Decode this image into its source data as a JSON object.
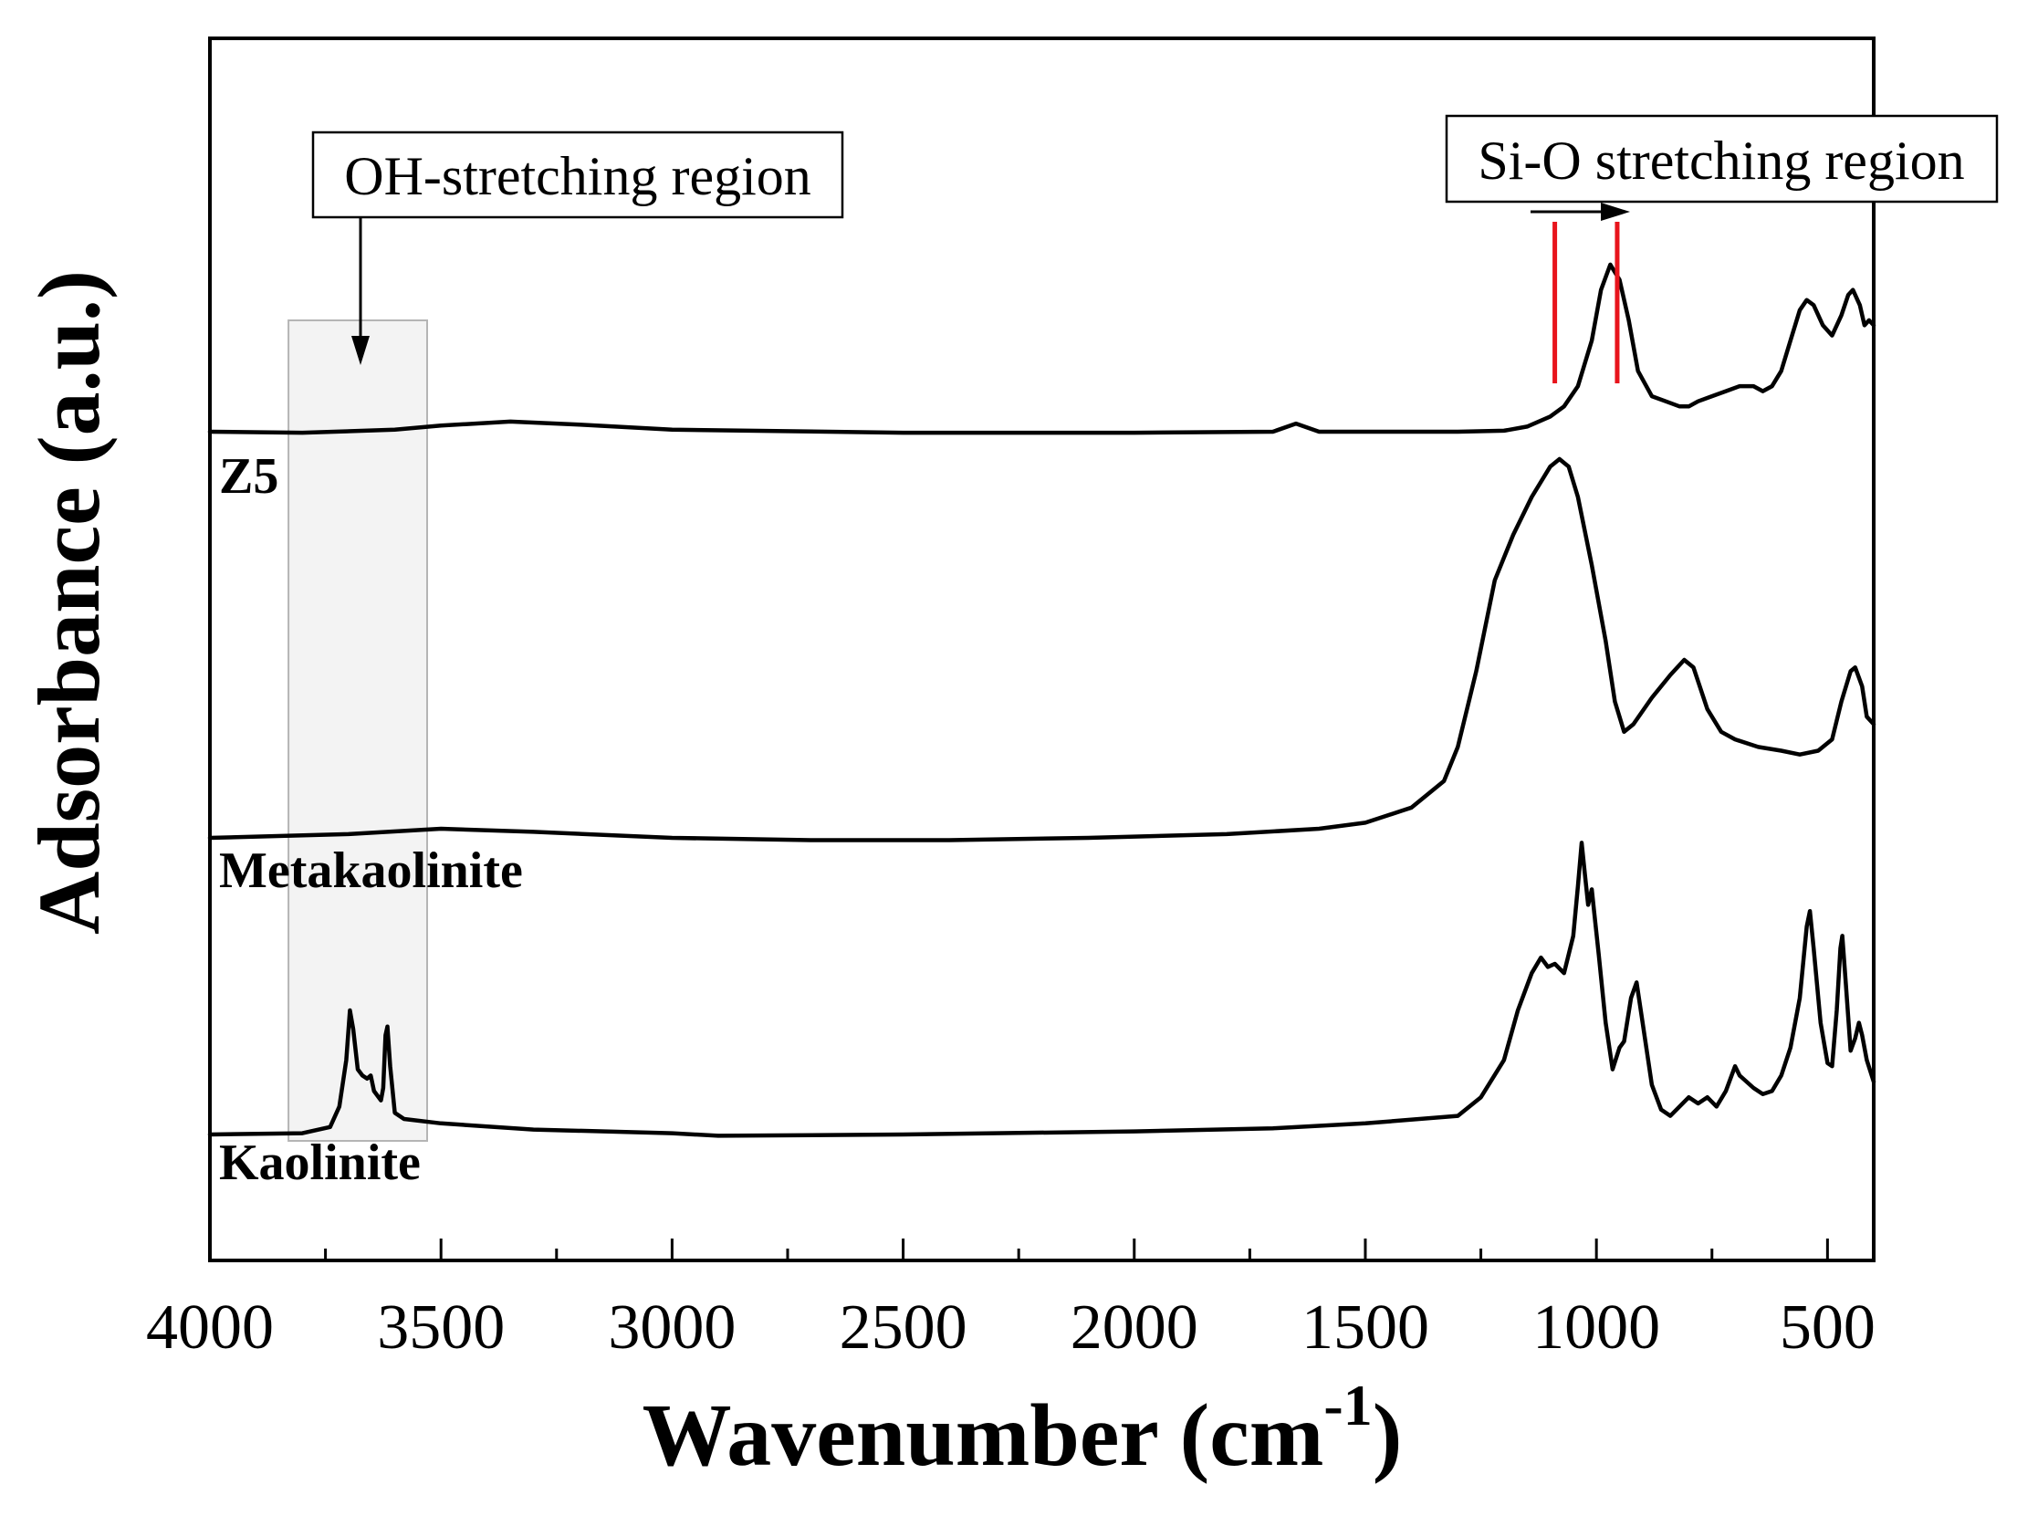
{
  "chart_data": {
    "type": "line",
    "title": "",
    "xlabel": "Wavenumber (cm",
    "xlabel_superscript": "-1",
    "xlabel_close": ")",
    "ylabel": "Adsorbance (a.u.)",
    "xlim": [
      4000,
      400
    ],
    "x_reversed": true,
    "yticks_shown": false,
    "xticks": [
      4000,
      3500,
      3000,
      2500,
      2000,
      1500,
      1000,
      500
    ],
    "xtick_labels": [
      "4000",
      "3500",
      "3000",
      "2500",
      "2000",
      "1500",
      "1000",
      "500"
    ],
    "series": [
      {
        "name": "Z5",
        "label": "Z5",
        "points": [
          [
            4000,
            0
          ],
          [
            3800,
            -0.01
          ],
          [
            3600,
            0.02
          ],
          [
            3500,
            0.06
          ],
          [
            3350,
            0.1
          ],
          [
            3200,
            0.07
          ],
          [
            3000,
            0.02
          ],
          [
            2500,
            -0.01
          ],
          [
            2000,
            -0.01
          ],
          [
            1700,
            0
          ],
          [
            1650,
            0.08
          ],
          [
            1600,
            0
          ],
          [
            1300,
            0
          ],
          [
            1200,
            0.01
          ],
          [
            1150,
            0.05
          ],
          [
            1100,
            0.15
          ],
          [
            1070,
            0.25
          ],
          [
            1040,
            0.45
          ],
          [
            1010,
            0.9
          ],
          [
            990,
            1.4
          ],
          [
            970,
            1.65
          ],
          [
            950,
            1.5
          ],
          [
            930,
            1.1
          ],
          [
            910,
            0.6
          ],
          [
            880,
            0.35
          ],
          [
            850,
            0.3
          ],
          [
            820,
            0.25
          ],
          [
            800,
            0.25
          ],
          [
            780,
            0.3
          ],
          [
            750,
            0.35
          ],
          [
            720,
            0.4
          ],
          [
            690,
            0.45
          ],
          [
            660,
            0.45
          ],
          [
            640,
            0.4
          ],
          [
            620,
            0.45
          ],
          [
            600,
            0.6
          ],
          [
            580,
            0.9
          ],
          [
            560,
            1.2
          ],
          [
            545,
            1.3
          ],
          [
            530,
            1.25
          ],
          [
            510,
            1.05
          ],
          [
            490,
            0.95
          ],
          [
            470,
            1.15
          ],
          [
            455,
            1.35
          ],
          [
            445,
            1.4
          ],
          [
            430,
            1.25
          ],
          [
            420,
            1.05
          ],
          [
            410,
            1.1
          ],
          [
            400,
            1.05
          ]
        ]
      },
      {
        "name": "Metakaolinite",
        "label": "Metakaolinite",
        "points": [
          [
            4000,
            0
          ],
          [
            3700,
            0.05
          ],
          [
            3500,
            0.12
          ],
          [
            3300,
            0.08
          ],
          [
            3000,
            0
          ],
          [
            2700,
            -0.03
          ],
          [
            2400,
            -0.03
          ],
          [
            2100,
            0
          ],
          [
            1800,
            0.05
          ],
          [
            1600,
            0.12
          ],
          [
            1500,
            0.2
          ],
          [
            1400,
            0.4
          ],
          [
            1330,
            0.75
          ],
          [
            1300,
            1.2
          ],
          [
            1260,
            2.2
          ],
          [
            1220,
            3.4
          ],
          [
            1180,
            4.0
          ],
          [
            1140,
            4.5
          ],
          [
            1100,
            4.9
          ],
          [
            1080,
            5.0
          ],
          [
            1060,
            4.9
          ],
          [
            1040,
            4.5
          ],
          [
            1010,
            3.6
          ],
          [
            980,
            2.6
          ],
          [
            960,
            1.8
          ],
          [
            940,
            1.4
          ],
          [
            920,
            1.5
          ],
          [
            880,
            1.85
          ],
          [
            840,
            2.15
          ],
          [
            810,
            2.35
          ],
          [
            790,
            2.25
          ],
          [
            760,
            1.7
          ],
          [
            730,
            1.4
          ],
          [
            700,
            1.3
          ],
          [
            650,
            1.2
          ],
          [
            600,
            1.15
          ],
          [
            560,
            1.1
          ],
          [
            520,
            1.15
          ],
          [
            490,
            1.3
          ],
          [
            470,
            1.8
          ],
          [
            450,
            2.2
          ],
          [
            440,
            2.25
          ],
          [
            425,
            2.0
          ],
          [
            415,
            1.6
          ],
          [
            400,
            1.5
          ]
        ]
      },
      {
        "name": "Kaolinite",
        "label": "Kaolinite",
        "points": [
          [
            4000,
            0
          ],
          [
            3800,
            0.02
          ],
          [
            3740,
            0.12
          ],
          [
            3720,
            0.45
          ],
          [
            3705,
            1.2
          ],
          [
            3697,
            2.0
          ],
          [
            3690,
            1.7
          ],
          [
            3680,
            1.05
          ],
          [
            3670,
            0.95
          ],
          [
            3660,
            0.9
          ],
          [
            3652,
            0.95
          ],
          [
            3645,
            0.7
          ],
          [
            3630,
            0.55
          ],
          [
            3625,
            0.75
          ],
          [
            3620,
            1.6
          ],
          [
            3616,
            1.74
          ],
          [
            3610,
            1.1
          ],
          [
            3600,
            0.35
          ],
          [
            3580,
            0.25
          ],
          [
            3500,
            0.18
          ],
          [
            3300,
            0.08
          ],
          [
            3000,
            0.02
          ],
          [
            2900,
            -0.02
          ],
          [
            2500,
            0
          ],
          [
            2000,
            0.05
          ],
          [
            1700,
            0.1
          ],
          [
            1500,
            0.18
          ],
          [
            1300,
            0.3
          ],
          [
            1250,
            0.6
          ],
          [
            1200,
            1.2
          ],
          [
            1170,
            2.0
          ],
          [
            1140,
            2.6
          ],
          [
            1120,
            2.85
          ],
          [
            1105,
            2.7
          ],
          [
            1090,
            2.75
          ],
          [
            1070,
            2.6
          ],
          [
            1050,
            3.2
          ],
          [
            1040,
            4.0
          ],
          [
            1032,
            4.7
          ],
          [
            1025,
            4.2
          ],
          [
            1018,
            3.7
          ],
          [
            1010,
            3.95
          ],
          [
            1005,
            3.6
          ],
          [
            995,
            2.9
          ],
          [
            980,
            1.8
          ],
          [
            965,
            1.05
          ],
          [
            950,
            1.4
          ],
          [
            940,
            1.5
          ],
          [
            925,
            2.2
          ],
          [
            913,
            2.45
          ],
          [
            900,
            1.8
          ],
          [
            880,
            0.8
          ],
          [
            860,
            0.4
          ],
          [
            840,
            0.3
          ],
          [
            800,
            0.6
          ],
          [
            780,
            0.5
          ],
          [
            760,
            0.6
          ],
          [
            740,
            0.45
          ],
          [
            720,
            0.7
          ],
          [
            700,
            1.1
          ],
          [
            690,
            0.95
          ],
          [
            660,
            0.75
          ],
          [
            640,
            0.65
          ],
          [
            620,
            0.7
          ],
          [
            600,
            0.95
          ],
          [
            580,
            1.4
          ],
          [
            560,
            2.2
          ],
          [
            545,
            3.35
          ],
          [
            538,
            3.6
          ],
          [
            530,
            3.0
          ],
          [
            515,
            1.8
          ],
          [
            500,
            1.15
          ],
          [
            490,
            1.1
          ],
          [
            480,
            2.0
          ],
          [
            472,
            3.0
          ],
          [
            468,
            3.2
          ],
          [
            460,
            2.4
          ],
          [
            450,
            1.35
          ],
          [
            440,
            1.55
          ],
          [
            432,
            1.8
          ],
          [
            425,
            1.6
          ],
          [
            415,
            1.2
          ],
          [
            400,
            0.85
          ]
        ]
      }
    ],
    "annotations": [
      {
        "text": "OH-stretching region",
        "arrow": "down",
        "shaded_range": [
          3830,
          3530
        ]
      },
      {
        "text": "Si-O stretching region",
        "arrow": "right",
        "red_markers": [
          1090,
          955
        ]
      }
    ]
  }
}
